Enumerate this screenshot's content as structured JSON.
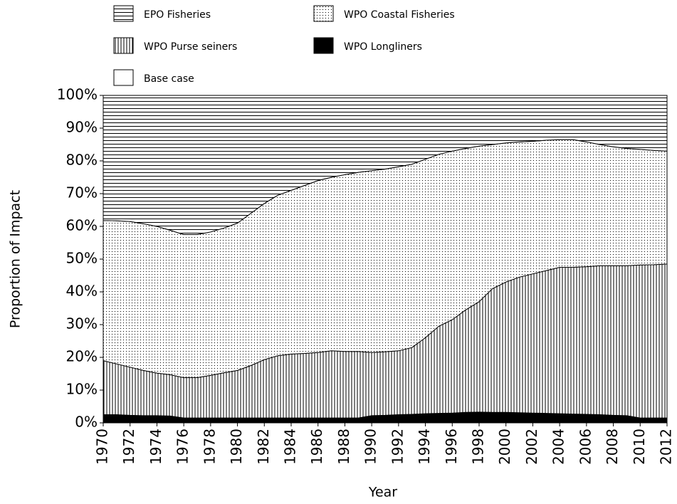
{
  "chart_data": {
    "type": "stacked_area",
    "x_label": "Year",
    "y_label": "Proportion of Impact",
    "x": [
      1970,
      1971,
      1972,
      1973,
      1974,
      1975,
      1976,
      1977,
      1978,
      1979,
      1980,
      1981,
      1982,
      1983,
      1984,
      1985,
      1986,
      1987,
      1988,
      1989,
      1990,
      1991,
      1992,
      1993,
      1994,
      1995,
      1996,
      1997,
      1998,
      1999,
      2000,
      2001,
      2002,
      2003,
      2004,
      2005,
      2006,
      2007,
      2008,
      2009,
      2010,
      2011,
      2012
    ],
    "xlim": [
      1970,
      2012
    ],
    "xticks": [
      1970,
      1972,
      1974,
      1976,
      1978,
      1980,
      1982,
      1984,
      1986,
      1988,
      1990,
      1992,
      1994,
      1996,
      1998,
      2000,
      2002,
      2004,
      2006,
      2008,
      2010,
      2012
    ],
    "ylim": [
      0,
      100
    ],
    "yticks": [
      {
        "value": 0,
        "label": "0%"
      },
      {
        "value": 10,
        "label": "10%"
      },
      {
        "value": 20,
        "label": "20%"
      },
      {
        "value": 30,
        "label": "30%"
      },
      {
        "value": 40,
        "label": "40%"
      },
      {
        "value": 50,
        "label": "50%"
      },
      {
        "value": 60,
        "label": "60%"
      },
      {
        "value": 70,
        "label": "70%"
      },
      {
        "value": 80,
        "label": "80%"
      },
      {
        "value": 90,
        "label": "90%"
      },
      {
        "value": 100,
        "label": "100%"
      }
    ],
    "series": [
      {
        "name": "WPO Longliners",
        "color": "#000000",
        "pattern": "solid",
        "values": [
          2.5,
          2.5,
          2.3,
          2.2,
          2.2,
          2.1,
          1.5,
          1.5,
          1.5,
          1.5,
          1.5,
          1.5,
          1.5,
          1.5,
          1.5,
          1.5,
          1.5,
          1.5,
          1.5,
          1.5,
          2.2,
          2.3,
          2.5,
          2.6,
          2.8,
          2.9,
          3.0,
          3.2,
          3.3,
          3.2,
          3.2,
          3.1,
          3.0,
          2.9,
          2.8,
          2.7,
          2.6,
          2.5,
          2.3,
          2.2,
          1.5,
          1.5,
          1.5
        ]
      },
      {
        "name": "WPO Purse seiners",
        "color": "#000000",
        "pattern": "vertical",
        "values": [
          16.5,
          15.5,
          14.7,
          13.8,
          13.0,
          12.6,
          12.3,
          12.3,
          13.0,
          13.8,
          14.5,
          16.0,
          17.8,
          19.0,
          19.5,
          19.7,
          20.0,
          20.5,
          20.3,
          20.3,
          19.3,
          19.4,
          19.5,
          20.4,
          23.2,
          26.6,
          28.5,
          31.3,
          33.7,
          37.8,
          39.8,
          41.4,
          42.5,
          43.6,
          44.7,
          44.8,
          45.1,
          45.5,
          45.7,
          45.8,
          46.7,
          46.8,
          47.0
        ]
      },
      {
        "name": "WPO Coastal Fisheries",
        "color": "#000000",
        "pattern": "dots",
        "values": [
          42.8,
          43.7,
          44.5,
          44.8,
          44.8,
          44.1,
          43.7,
          43.7,
          43.8,
          44.2,
          45.0,
          46.5,
          47.7,
          49.0,
          50.0,
          51.3,
          52.5,
          53.0,
          54.0,
          54.7,
          55.5,
          55.8,
          56.2,
          56.0,
          54.5,
          52.5,
          51.5,
          49.3,
          47.5,
          44.0,
          42.5,
          41.3,
          40.5,
          39.8,
          39.0,
          39.0,
          38.1,
          37.0,
          36.3,
          35.8,
          35.3,
          34.9,
          34.5
        ]
      },
      {
        "name": "Base case",
        "color": "#000000",
        "pattern": "none",
        "values": [
          0,
          0,
          0,
          0,
          0,
          0,
          0,
          0,
          0,
          0,
          0,
          0,
          0,
          0,
          0,
          0,
          0,
          0,
          0,
          0,
          0,
          0,
          0,
          0,
          0,
          0,
          0,
          0,
          0,
          0,
          0,
          0,
          0,
          0,
          0,
          0,
          0,
          0,
          0,
          0,
          0,
          0,
          0
        ]
      },
      {
        "name": "EPO Fisheries",
        "color": "#000000",
        "pattern": "horizontal",
        "values": [
          38.2,
          38.3,
          38.5,
          39.2,
          40.0,
          41.2,
          42.5,
          42.5,
          41.7,
          40.5,
          39.0,
          36.0,
          33.0,
          30.5,
          29.0,
          27.5,
          26.0,
          25.0,
          24.2,
          23.5,
          23.0,
          22.5,
          21.8,
          21.0,
          19.5,
          18.0,
          17.0,
          16.2,
          15.5,
          15.0,
          14.5,
          14.2,
          14.0,
          13.7,
          13.5,
          13.5,
          14.2,
          15.0,
          15.7,
          16.2,
          16.5,
          16.8,
          17.0
        ]
      }
    ]
  }
}
